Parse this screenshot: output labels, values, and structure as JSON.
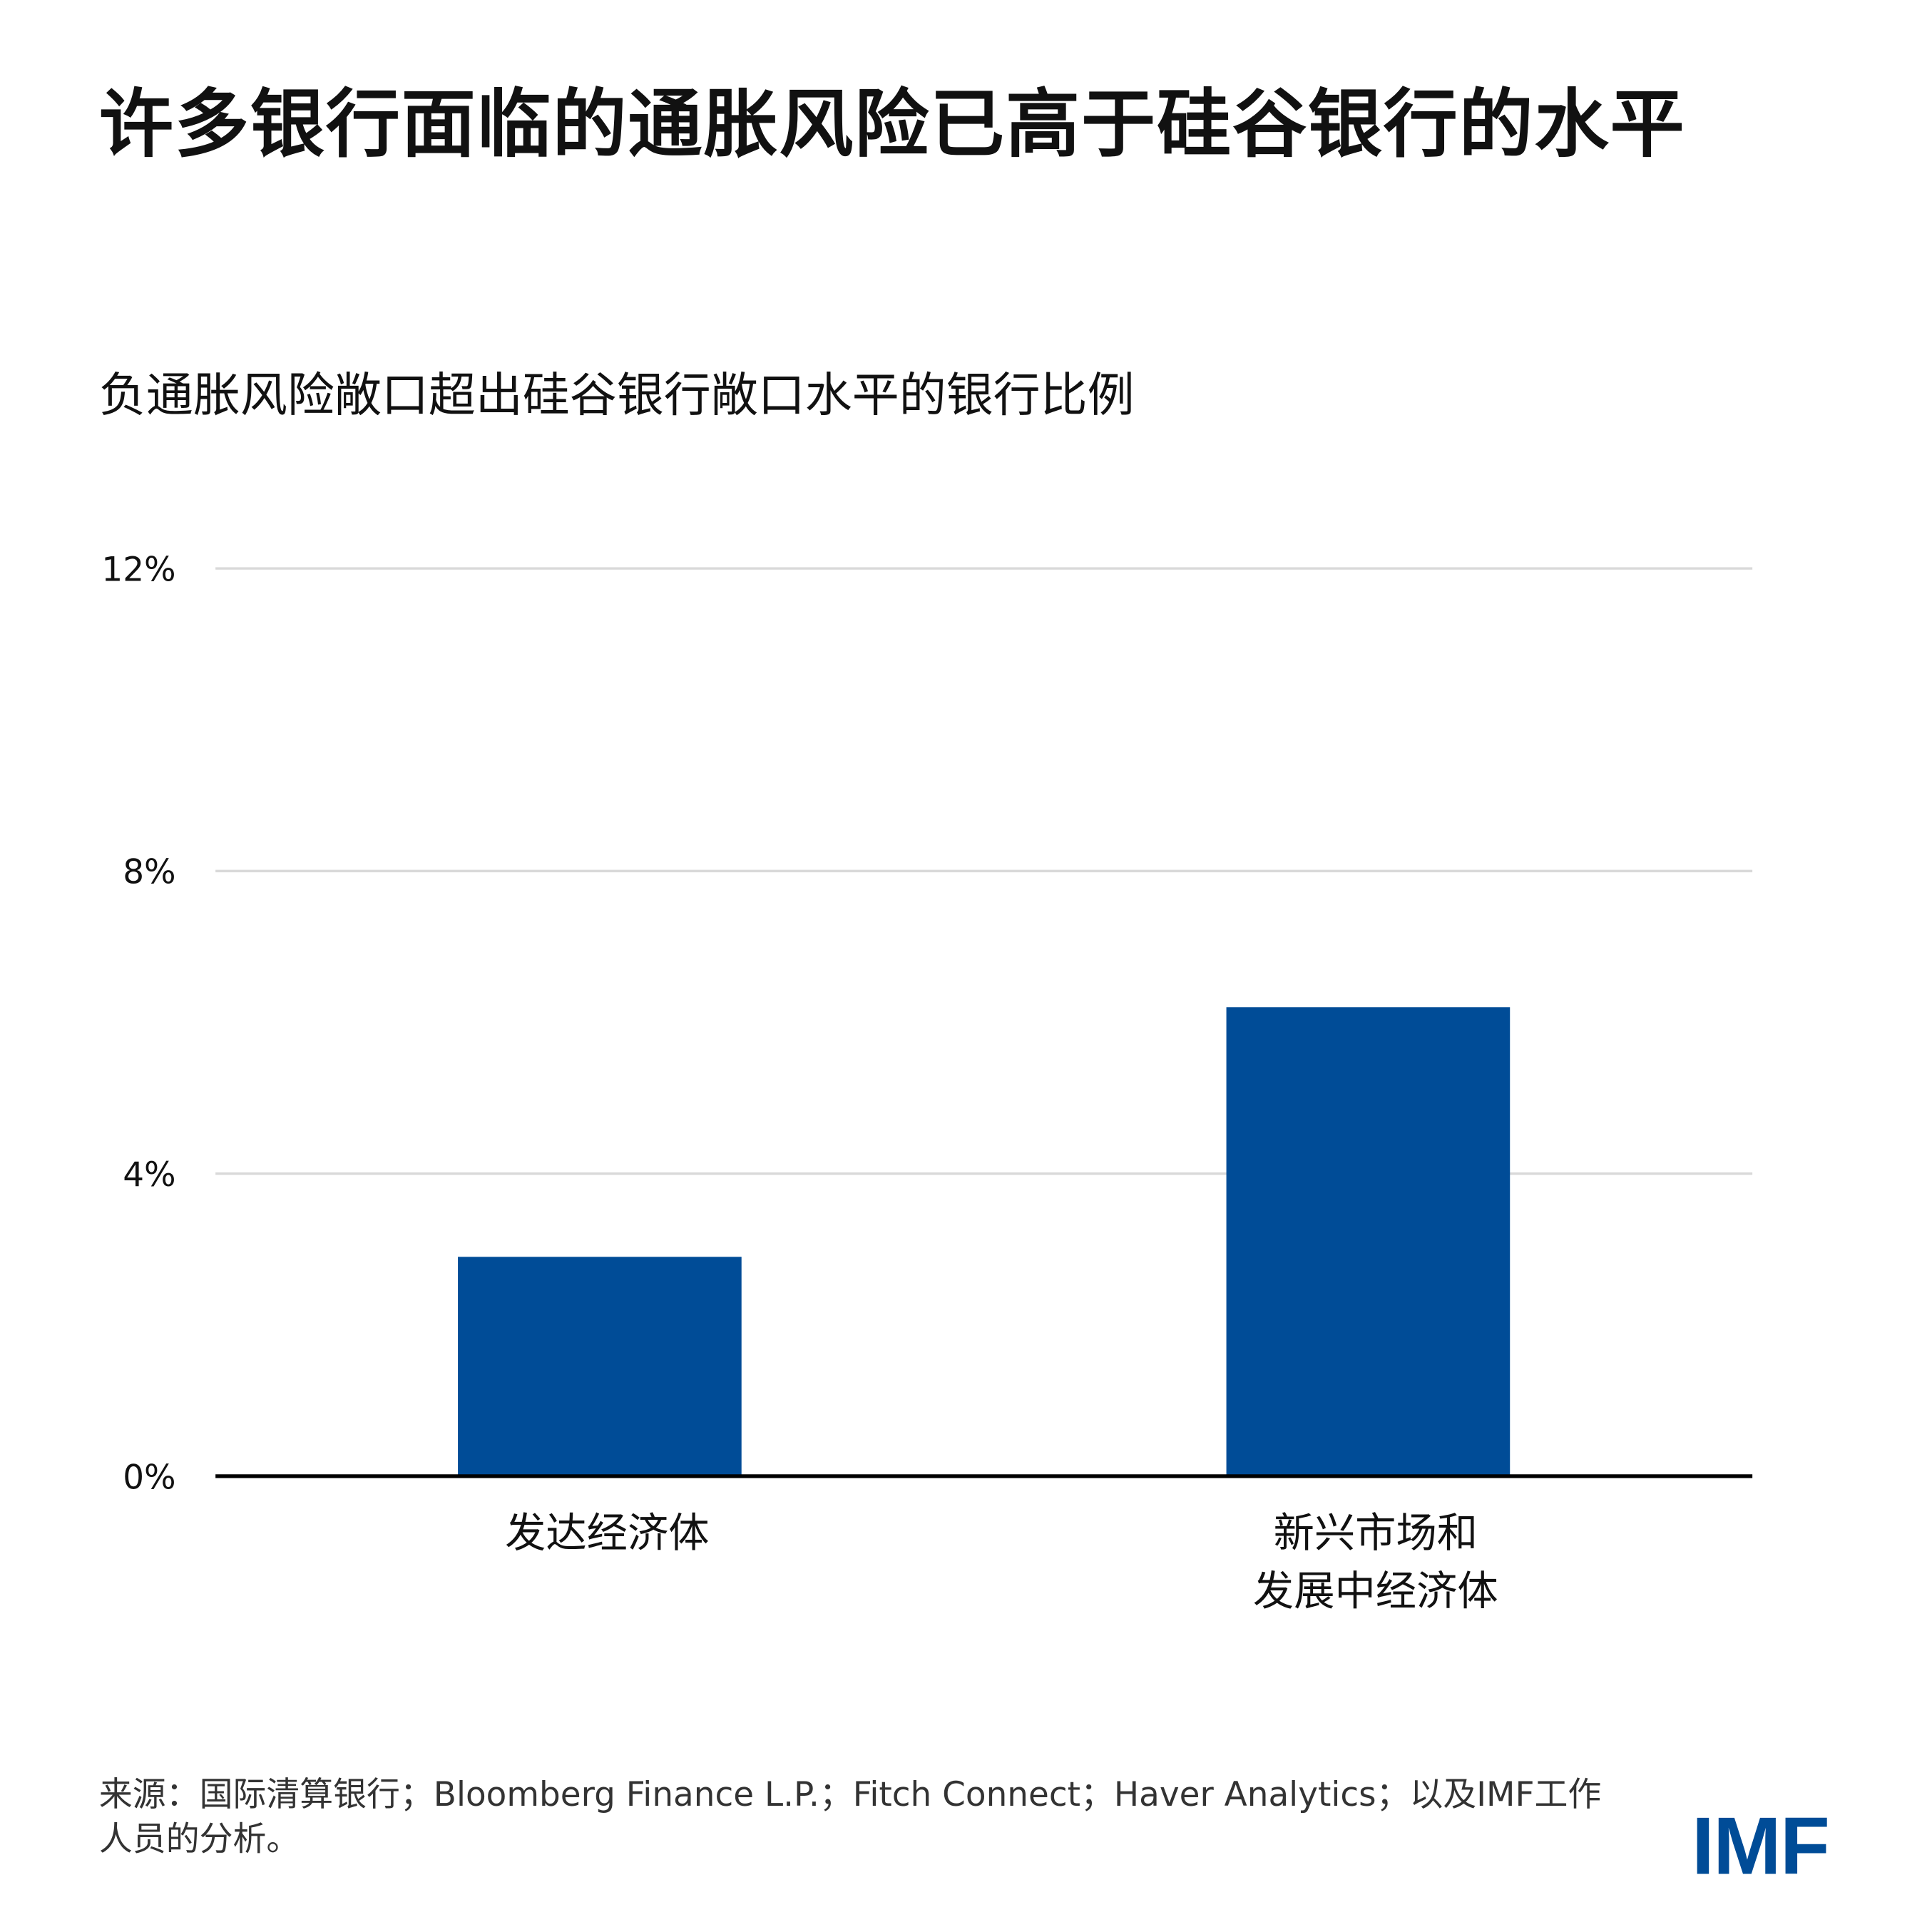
{
  "title": "许多银行面临的通胀风险已高于硅谷银行的水平",
  "subtitle": "负通胀风险敞口超出硅谷银行敞口水平的银行比例",
  "source": "来源：国际清算银行；Bloomberg Finance L.P.；Fitch Connect；Haver Analytics；以及IMF工作人员的分析。",
  "logo": "IMF",
  "colors": {
    "bar": "#004c97",
    "grid": "#d9d9d9",
    "axis": "#000000"
  },
  "chart_data": {
    "type": "bar",
    "categories": [
      [
        "发达经济体"
      ],
      [
        "新兴市场和",
        "发展中经济体"
      ]
    ],
    "values": [
      2.9,
      6.2
    ],
    "ylim": [
      0,
      12
    ],
    "yticks": [
      0,
      4,
      8,
      12
    ],
    "ytick_labels": [
      "0%",
      "4%",
      "8%",
      "12%"
    ],
    "grid": true,
    "xlabel": "",
    "ylabel": ""
  }
}
